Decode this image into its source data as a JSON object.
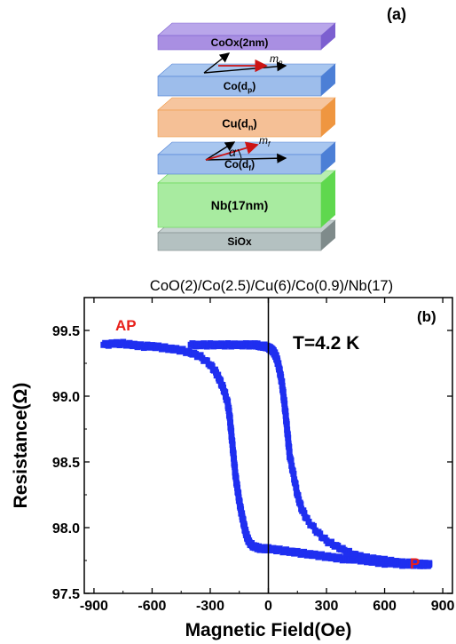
{
  "panel_a": {
    "label": "(a)",
    "layers": [
      {
        "text": "CoOx(2nm)",
        "top": "#b9a6ea",
        "front": "#a98fe2",
        "side": "#7c5fd0"
      },
      {
        "text": "Co(d",
        "sub": "p",
        "after": ")",
        "top": "#a8c6ef",
        "front": "#9dbdeb",
        "side": "#4c7fd6"
      },
      {
        "text": "Cu(d",
        "sub": "n",
        "after": ")",
        "top": "#f6c59e",
        "front": "#f5c096",
        "side": "#ef9640"
      },
      {
        "text": "Co(d",
        "sub": "f",
        "after": ")",
        "top": "#a8c6ef",
        "front": "#9dbdeb",
        "side": "#4c7fd6"
      },
      {
        "text": "Nb(17nm)",
        "top": "#b8eeb0",
        "front": "#a8eba0",
        "side": "#5fd84e"
      },
      {
        "text": "SiOx",
        "top": "#c4cfcf",
        "front": "#b4c1c1",
        "side": "#7f8b8b"
      }
    ],
    "mp_label": "m",
    "mp_sub": "p",
    "mf_label": "m",
    "mf_sub": "f",
    "alpha_label": "α"
  },
  "chart_data": {
    "type": "scatter",
    "title": "CoO(2)/Co(2.5)/Cu(6)/Co(0.9)/Nb(17)",
    "panel_label": "(b)",
    "xlabel": "Magnetic Field(Oe)",
    "ylabel": "Resistance(Ω)",
    "xlim": [
      -950,
      950
    ],
    "ylim": [
      97.5,
      99.75
    ],
    "xticks": [
      -900,
      -600,
      -300,
      0,
      300,
      600,
      900
    ],
    "yticks": [
      97.5,
      98.0,
      98.5,
      99.0,
      99.5
    ],
    "ytick_labels": [
      "97.5",
      "98.0",
      "98.5",
      "99.0",
      "99.5"
    ],
    "annotations": [
      {
        "text": "AP",
        "color": "#e8201a"
      },
      {
        "text": "P",
        "color": "#e8201a"
      },
      {
        "text": "T=4.2 K",
        "color": "#000000"
      }
    ],
    "marker_color": "#1f2ff0",
    "vertical_line_at": 0,
    "series": [
      {
        "x": [
          -850,
          -800,
          -750,
          -700,
          -650,
          -600,
          -550,
          -500,
          -450,
          -400,
          -350,
          -300,
          -270,
          -250,
          -230,
          -210,
          -200,
          -190,
          -180,
          -170,
          -160,
          -150,
          -140,
          -130,
          -120,
          -110,
          -100,
          -80,
          -60,
          -40,
          -20,
          0,
          50,
          100,
          150,
          200,
          250,
          300,
          350,
          400,
          450,
          500,
          550,
          600,
          650,
          700,
          750,
          800,
          830
        ],
        "y": [
          99.39,
          99.4,
          99.4,
          99.39,
          99.38,
          99.38,
          99.37,
          99.36,
          99.35,
          99.33,
          99.3,
          99.24,
          99.18,
          99.12,
          99.05,
          98.95,
          98.85,
          98.7,
          98.55,
          98.4,
          98.3,
          98.2,
          98.12,
          98.05,
          97.98,
          97.93,
          97.89,
          97.86,
          97.85,
          97.84,
          97.84,
          97.84,
          97.83,
          97.82,
          97.81,
          97.8,
          97.79,
          97.78,
          97.77,
          97.76,
          97.76,
          97.75,
          97.74,
          97.73,
          97.73,
          97.72,
          97.72,
          97.72,
          97.72
        ]
      },
      {
        "x": [
          830,
          800,
          750,
          700,
          650,
          600,
          550,
          500,
          450,
          400,
          350,
          300,
          250,
          200,
          170,
          150,
          130,
          110,
          100,
          90,
          80,
          70,
          60,
          50,
          40,
          30,
          20,
          10,
          0,
          -20,
          -40,
          -60,
          -80,
          -100,
          -150,
          -200,
          -250,
          -300,
          -350,
          -400
        ],
        "y": [
          97.72,
          97.72,
          97.73,
          97.73,
          97.74,
          97.75,
          97.76,
          97.77,
          97.79,
          97.82,
          97.86,
          97.9,
          97.97,
          98.06,
          98.15,
          98.25,
          98.4,
          98.55,
          98.7,
          98.85,
          98.98,
          99.1,
          99.18,
          99.25,
          99.3,
          99.33,
          99.35,
          99.36,
          99.37,
          99.38,
          99.38,
          99.39,
          99.39,
          99.39,
          99.39,
          99.39,
          99.39,
          99.39,
          99.39,
          99.39
        ]
      }
    ]
  }
}
